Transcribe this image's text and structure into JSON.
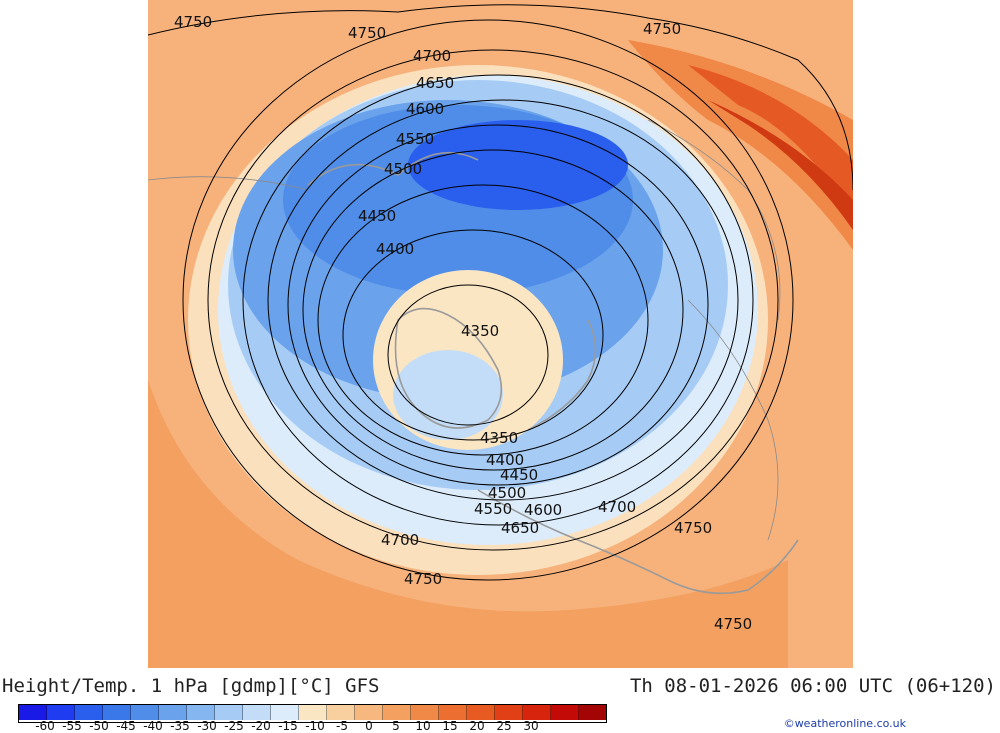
{
  "caption": {
    "title": "Height/Temp. 1 hPa [gdmp][°C] GFS",
    "valid_time": "Th 08-01-2026 06:00 UTC (06+120)"
  },
  "credit": "©weatheronline.co.uk",
  "map": {
    "contour_labels": [
      "4750",
      "4750",
      "4750",
      "4700",
      "4650",
      "4600",
      "4550",
      "4500",
      "4450",
      "4400",
      "4350",
      "4350",
      "4400",
      "4450",
      "4500",
      "4550",
      "4600",
      "4650",
      "4700",
      "4700",
      "4750",
      "4750",
      "4750"
    ]
  },
  "legend": {
    "ticks": [
      "-60",
      "-55",
      "-50",
      "-45",
      "-40",
      "-35",
      "-30",
      "-25",
      "-20",
      "-15",
      "-10",
      "-5",
      "0",
      "5",
      "10",
      "15",
      "20",
      "25",
      "30"
    ],
    "colors": [
      "#1a1ae6",
      "#1f3cf0",
      "#2a5fee",
      "#3a78ea",
      "#4f8de8",
      "#6aa2ec",
      "#86b6f0",
      "#a6cbf5",
      "#c3ddf8",
      "#dcecfb",
      "#fbe6c4",
      "#f8cf9f",
      "#f6b87e",
      "#f3a061",
      "#f08848",
      "#ec6e31",
      "#e75a22",
      "#e13f16",
      "#d7250d",
      "#c30a06",
      "#a30404"
    ]
  }
}
